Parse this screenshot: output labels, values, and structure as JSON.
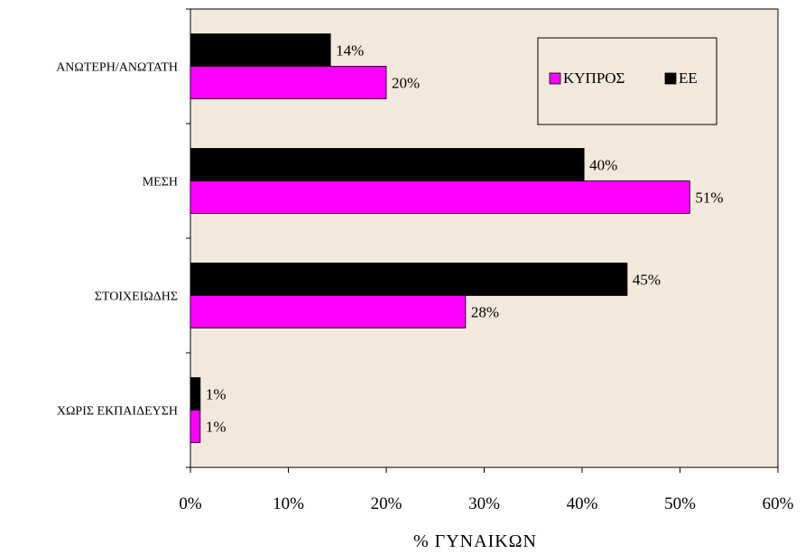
{
  "chart_data": {
    "type": "bar",
    "orientation": "horizontal",
    "categories": [
      "ΑΝΩΤΕΡΗ/ΑΝΩΤΑΤΗ",
      "ΜΕΣΗ",
      "ΣΤΟΙΧΕΙΩΔΗΣ",
      "ΧΩΡΙΣ ΕΚΠΑΙΔΕΥΣΗ"
    ],
    "series": [
      {
        "name": "ΕΕ",
        "color": "#000000",
        "values": [
          14.3,
          40.2,
          44.6,
          1
        ],
        "labels": [
          "14%",
          "40%",
          "45%",
          "1%"
        ]
      },
      {
        "name": "ΚΥΠΡΟΣ",
        "color": "#ff00ff",
        "values": [
          20,
          51,
          28.1,
          1
        ],
        "labels": [
          "20%",
          "51%",
          "28%",
          "1%"
        ]
      }
    ],
    "xlabel": "% ΓΥΝΑΙΚΩΝ",
    "xlim": [
      0,
      60
    ],
    "xticks": [
      0,
      10,
      20,
      30,
      40,
      50,
      60
    ],
    "xtick_labels": [
      "0%",
      "10%",
      "20%",
      "30%",
      "40%",
      "50%",
      "60%"
    ],
    "legend": {
      "position": "top-right",
      "order": [
        "ΚΥΠΡΟΣ",
        "ΕΕ"
      ]
    },
    "plot_background": "#f2e9dc",
    "grid": false
  }
}
